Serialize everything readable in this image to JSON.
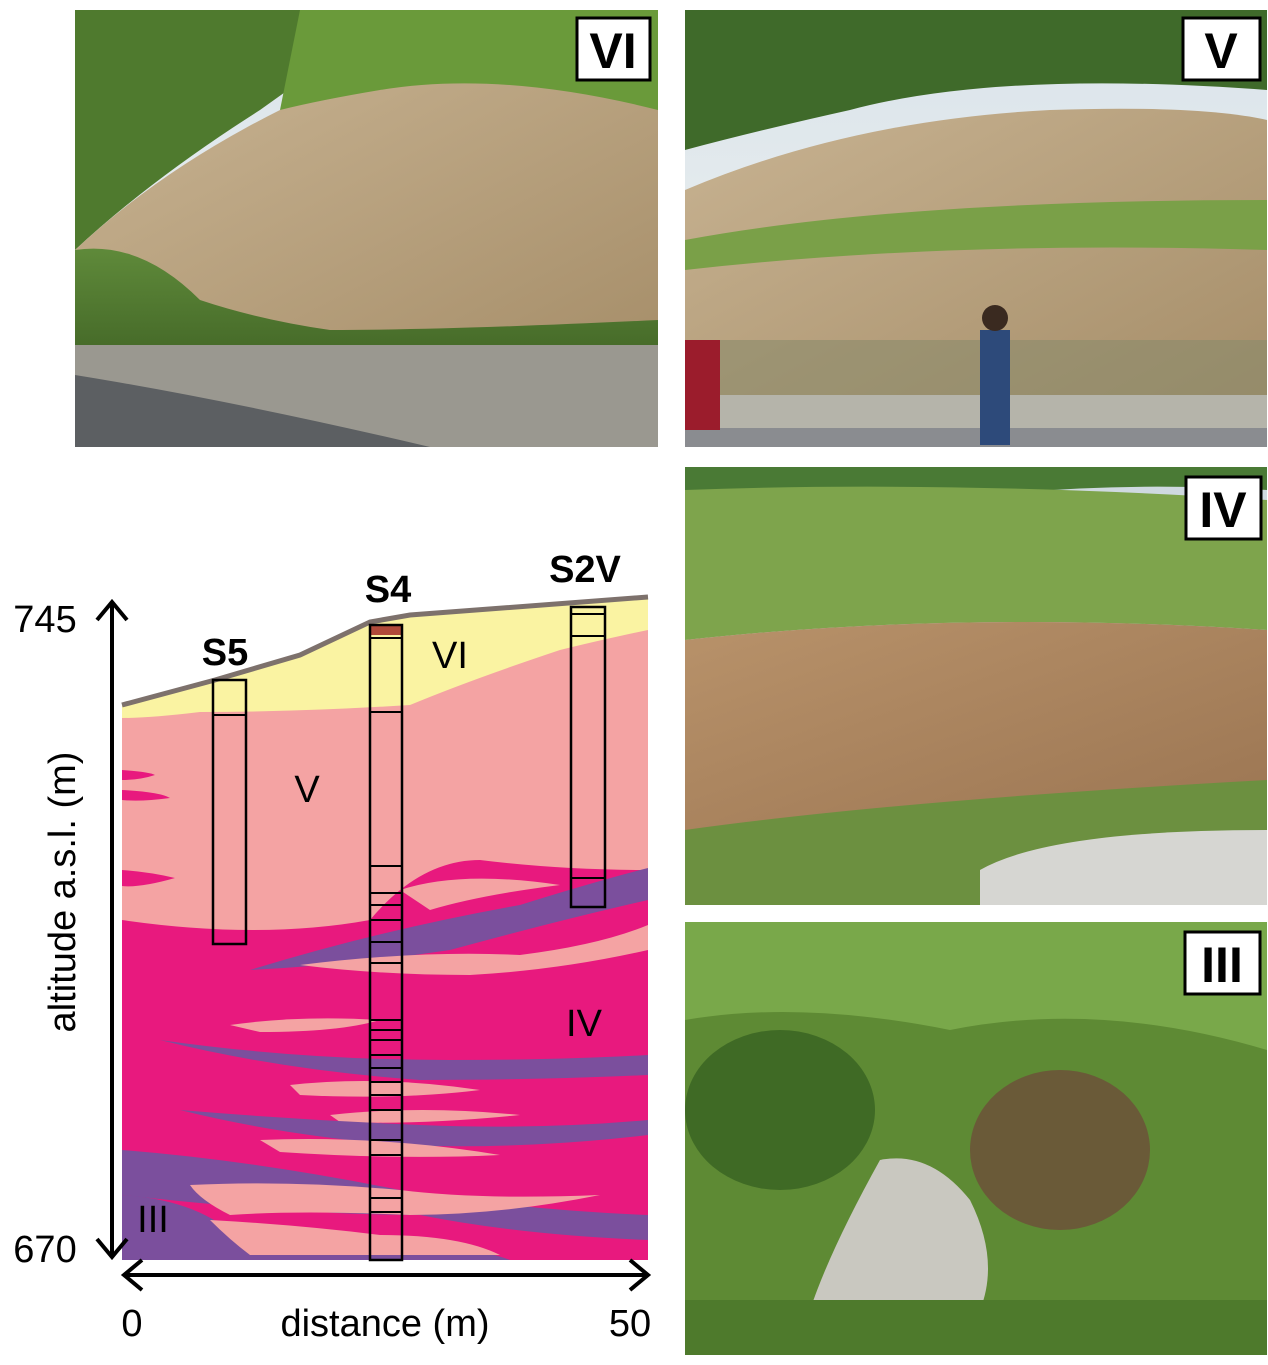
{
  "photos": [
    {
      "label": "VI"
    },
    {
      "label": "V"
    },
    {
      "label": "IV"
    },
    {
      "label": "III"
    }
  ],
  "section": {
    "boreholes": [
      "S5",
      "S4",
      "S2V"
    ],
    "units": [
      "VI",
      "V",
      "IV",
      "III"
    ],
    "y_axis": {
      "label": "altitude a.s.l. (m)",
      "top": 745,
      "bottom": 670
    },
    "x_axis": {
      "label": "distance (m)",
      "left": 0,
      "right": 50
    }
  }
}
